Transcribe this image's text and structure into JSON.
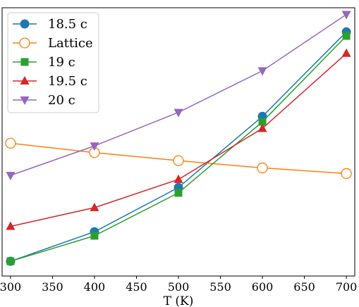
{
  "chart_data": {
    "type": "line",
    "title": "",
    "xlabel": "T (K)",
    "ylabel": "",
    "x": [
      300,
      400,
      500,
      600,
      700
    ],
    "xlim": [
      290,
      710
    ],
    "ylim": [
      0,
      100
    ],
    "xticks": [
      300,
      350,
      400,
      450,
      500,
      550,
      600,
      650,
      700
    ],
    "yticks_shown": false,
    "grid": false,
    "legend_position": "top-left",
    "series": [
      {
        "name": "18.5 c",
        "color": "#1f77b4",
        "marker": "circle",
        "values": [
          5.5,
          16.5,
          33.0,
          59.5,
          91.0
        ]
      },
      {
        "name": "Lattice",
        "color": "#ff7f0e",
        "marker": "open-circle",
        "values": [
          49.5,
          46.0,
          43.0,
          40.3,
          38.2
        ]
      },
      {
        "name": "19 c",
        "color": "#2ca02c",
        "marker": "square",
        "values": [
          5.5,
          15.0,
          31.0,
          57.5,
          89.5
        ]
      },
      {
        "name": "19.5 c",
        "color": "#d62728",
        "marker": "triangle-up",
        "values": [
          18.5,
          25.5,
          36.0,
          55.0,
          83.0
        ]
      },
      {
        "name": "20 c",
        "color": "#9467bd",
        "marker": "triangle-down",
        "values": [
          37.5,
          48.5,
          61.0,
          76.5,
          97.5
        ]
      }
    ]
  }
}
